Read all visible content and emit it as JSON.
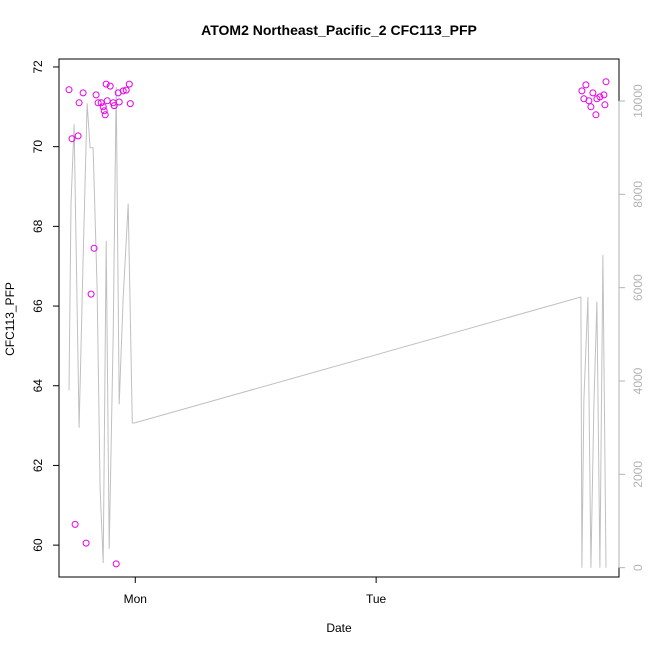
{
  "chart_data": {
    "type": "scatter",
    "title": "ATOM2 Northeast_Pacific_2 CFC113_PFP",
    "xlabel": "Date",
    "ylabel": "CFC113_PFP",
    "x_ticks": [
      "Mon",
      "Tue"
    ],
    "y_ticks": [
      60,
      62,
      64,
      66,
      68,
      70,
      72
    ],
    "y2_ticks": [
      0,
      2000,
      4000,
      6000,
      8000,
      10000
    ],
    "ylim": [
      59.2,
      72.2
    ],
    "y2lim": [
      -200,
      10900
    ],
    "x_unit": "hours relative to Mon 00:00",
    "xlim": [
      -7.6,
      48.2
    ],
    "point_color": "#e600e6",
    "line_color": "#c0c0c0",
    "series": [
      {
        "role": "CFC113_PFP measurements (left axis)",
        "points": [
          [
            -6.6,
            71.43
          ],
          [
            -6.3,
            70.2
          ],
          [
            -6.0,
            60.52
          ],
          [
            -5.6,
            71.1
          ],
          [
            -5.7,
            70.27
          ],
          [
            -5.2,
            71.35
          ],
          [
            -4.9,
            60.05
          ],
          [
            -4.4,
            66.3
          ],
          [
            -4.1,
            67.45
          ],
          [
            -3.9,
            71.3
          ],
          [
            -3.7,
            71.1
          ],
          [
            -3.4,
            71.1
          ],
          [
            -3.2,
            71.0
          ],
          [
            -3.1,
            70.9
          ],
          [
            -3.0,
            70.8
          ],
          [
            -2.9,
            71.57
          ],
          [
            -2.8,
            71.15
          ],
          [
            -2.5,
            71.52
          ],
          [
            -2.2,
            71.1
          ],
          [
            -2.1,
            71.03
          ],
          [
            -1.9,
            59.53
          ],
          [
            -1.7,
            71.35
          ],
          [
            -1.6,
            71.12
          ],
          [
            -1.2,
            71.4
          ],
          [
            -0.9,
            71.42
          ],
          [
            -0.6,
            71.57
          ],
          [
            -0.5,
            71.08
          ],
          [
            44.5,
            71.4
          ],
          [
            44.7,
            71.2
          ],
          [
            44.9,
            71.55
          ],
          [
            45.2,
            71.15
          ],
          [
            45.4,
            71.0
          ],
          [
            45.6,
            71.35
          ],
          [
            45.9,
            70.8
          ],
          [
            46.0,
            71.2
          ],
          [
            46.3,
            71.25
          ],
          [
            46.7,
            71.3
          ],
          [
            46.8,
            71.05
          ],
          [
            46.9,
            71.63
          ]
        ]
      },
      {
        "role": "secondary trace (right axis)",
        "points": [
          [
            -6.6,
            3800
          ],
          [
            -6.4,
            7800
          ],
          [
            -6.1,
            9500
          ],
          [
            -5.6,
            3000
          ],
          [
            -5.2,
            6600
          ],
          [
            -4.8,
            9950
          ],
          [
            -4.5,
            9000
          ],
          [
            -4.2,
            9000
          ],
          [
            -3.8,
            6000
          ],
          [
            -3.5,
            1700
          ],
          [
            -3.2,
            100
          ],
          [
            -2.9,
            7000
          ],
          [
            -2.6,
            400
          ],
          [
            -2.2,
            5000
          ],
          [
            -1.9,
            10300
          ],
          [
            -1.6,
            3500
          ],
          [
            -1.2,
            5800
          ],
          [
            -0.7,
            7800
          ],
          [
            -0.3,
            3100
          ],
          [
            -0.1,
            3100
          ],
          [
            44.4,
            5800
          ],
          [
            44.5,
            0
          ],
          [
            44.7,
            3600
          ],
          [
            45.1,
            5800
          ],
          [
            45.4,
            0
          ],
          [
            45.7,
            3500
          ],
          [
            46.0,
            5700
          ],
          [
            46.3,
            0
          ],
          [
            46.6,
            6700
          ],
          [
            46.9,
            0
          ]
        ]
      }
    ],
    "grid": false,
    "legend": "none"
  }
}
